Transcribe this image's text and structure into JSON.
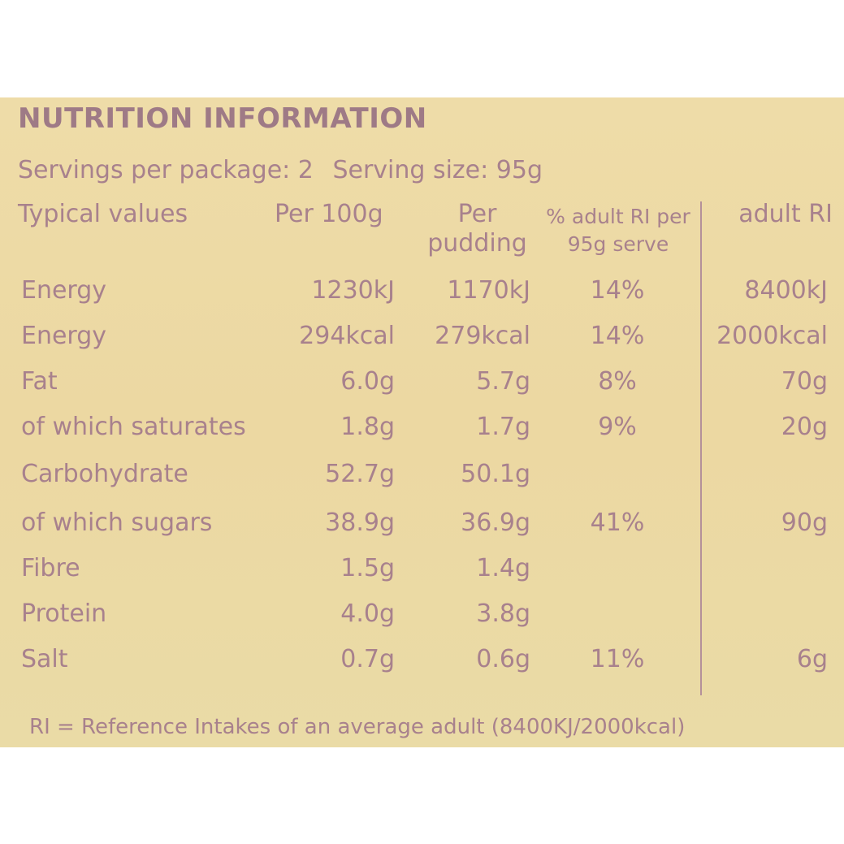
{
  "title": "NUTRITION INFORMATION",
  "servings": {
    "per_package": "Servings per package: 2",
    "serving_size": "Serving size: 95g"
  },
  "columns": {
    "typical": "Typical values",
    "per100": "Per 100g",
    "per_pudding_1": "Per",
    "per_pudding_2": "pudding",
    "pct_1": "% adult RI per",
    "pct_2": "95g serve",
    "adult_ri": "adult RI"
  },
  "rows": [
    {
      "name": "Energy",
      "per100": "1230kJ",
      "per_pudding": "1170kJ",
      "pct": "14%",
      "ri": "8400kJ"
    },
    {
      "name": "Energy",
      "per100": "294kcal",
      "per_pudding": "279kcal",
      "pct": "14%",
      "ri": "2000kcal"
    },
    {
      "name": "Fat",
      "per100": "6.0g",
      "per_pudding": "5.7g",
      "pct": "8%",
      "ri": "70g"
    },
    {
      "name": "of which saturates",
      "per100": "1.8g",
      "per_pudding": "1.7g",
      "pct": "9%",
      "ri": "20g"
    },
    {
      "name": "Carbohydrate",
      "per100": "52.7g",
      "per_pudding": "50.1g",
      "pct": "",
      "ri": ""
    },
    {
      "name": "of which sugars",
      "per100": "38.9g",
      "per_pudding": "36.9g",
      "pct": "41%",
      "ri": "90g"
    },
    {
      "name": "Fibre",
      "per100": "1.5g",
      "per_pudding": "1.4g",
      "pct": "",
      "ri": ""
    },
    {
      "name": "Protein",
      "per100": "4.0g",
      "per_pudding": "3.8g",
      "pct": "",
      "ri": ""
    },
    {
      "name": "Salt",
      "per100": "0.7g",
      "per_pudding": "0.6g",
      "pct": "11%",
      "ri": "6g"
    }
  ],
  "footnote": "RI = Reference Intakes of an average adult (8400KJ/2000kcal)"
}
